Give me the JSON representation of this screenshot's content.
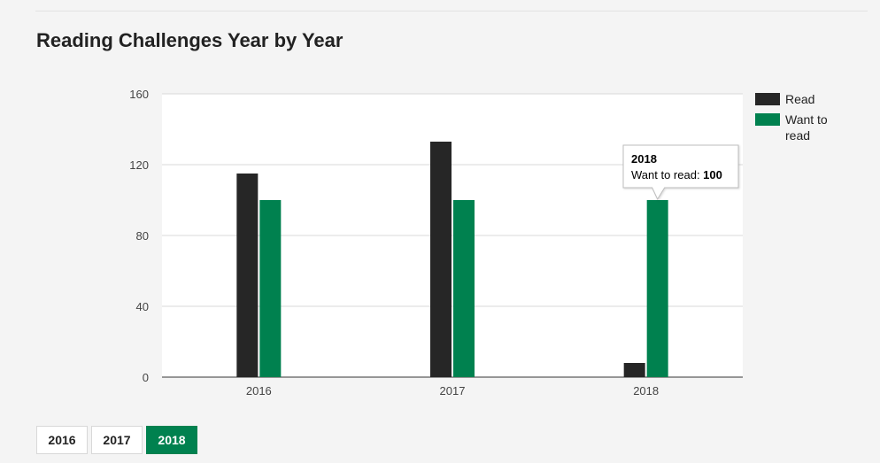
{
  "page": {
    "title": "Reading Challenges Year by Year"
  },
  "colors": {
    "read": "#262626",
    "want": "#00814f",
    "grid": "#d9d9d9",
    "plot_bg": "#ffffff",
    "active_tab": "#00814f"
  },
  "chart_data": {
    "type": "bar",
    "categories": [
      "2016",
      "2017",
      "2018"
    ],
    "series": [
      {
        "name": "Read",
        "color": "#262626",
        "values": [
          115,
          133,
          8
        ]
      },
      {
        "name": "Want to read",
        "color": "#00814f",
        "values": [
          100,
          100,
          100
        ]
      }
    ],
    "ylim": [
      0,
      160
    ],
    "yticks": [
      0,
      40,
      80,
      120,
      160
    ],
    "grid": true,
    "legend_position": "right",
    "tooltip": {
      "category": "2018",
      "series": "Want to read",
      "label": "Want to read: ",
      "value": "100"
    }
  },
  "year_tabs": {
    "items": [
      {
        "label": "2016",
        "active": false
      },
      {
        "label": "2017",
        "active": false
      },
      {
        "label": "2018",
        "active": true
      }
    ]
  }
}
